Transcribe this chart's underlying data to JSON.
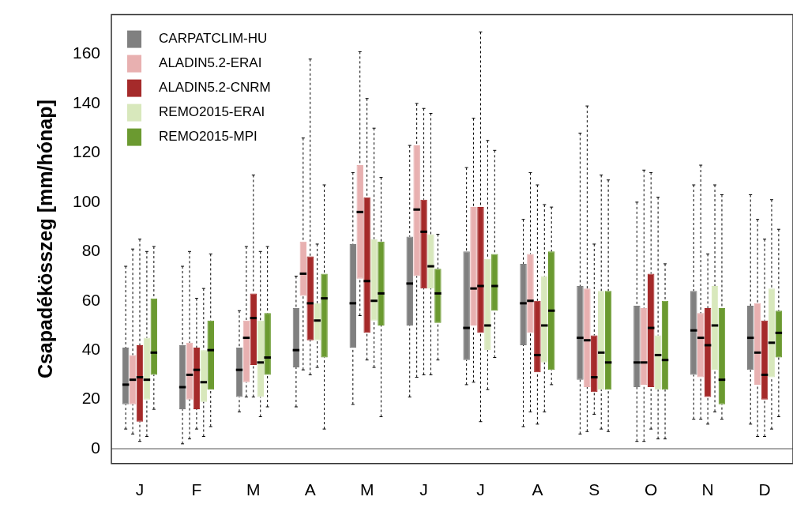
{
  "chart_data": {
    "type": "box",
    "ylabel": "Csapadékösszeg [mm/hónap]",
    "categories": [
      "J",
      "F",
      "M",
      "A",
      "M",
      "J",
      "J",
      "A",
      "S",
      "O",
      "N",
      "D"
    ],
    "ylim": [
      -6,
      176
    ],
    "yticks": [
      0,
      20,
      40,
      60,
      80,
      100,
      120,
      140,
      160
    ],
    "grid": false,
    "legend": "top left",
    "ref_lines": [
      {
        "axis": "y",
        "value": 0,
        "color": "#aaaaaa"
      }
    ],
    "series": [
      {
        "name": "CARPATCLIM-HU",
        "color": "#808080",
        "boxes": [
          {
            "low": 8,
            "q1": 18,
            "median": 26,
            "q3": 41,
            "high": 74
          },
          {
            "low": 2,
            "q1": 16,
            "median": 25,
            "q3": 42,
            "high": 74
          },
          {
            "low": 15,
            "q1": 21,
            "median": 32,
            "q3": 41,
            "high": 56
          },
          {
            "low": 17,
            "q1": 33,
            "median": 40,
            "q3": 57,
            "high": 70
          },
          {
            "low": 18,
            "q1": 41,
            "median": 59,
            "q3": 83,
            "high": 112
          },
          {
            "low": 21,
            "q1": 50,
            "median": 67,
            "q3": 86,
            "high": 123
          },
          {
            "low": 26,
            "q1": 36,
            "median": 49,
            "q3": 80,
            "high": 114
          },
          {
            "low": 9,
            "q1": 42,
            "median": 59,
            "q3": 75,
            "high": 93
          },
          {
            "low": 6,
            "q1": 28,
            "median": 45,
            "q3": 66,
            "high": 128
          },
          {
            "low": 3,
            "q1": 25,
            "median": 35,
            "q3": 58,
            "high": 100
          },
          {
            "low": 12,
            "q1": 30,
            "median": 48,
            "q3": 64,
            "high": 107
          },
          {
            "low": 10,
            "q1": 32,
            "median": 45,
            "q3": 58,
            "high": 103
          }
        ]
      },
      {
        "name": "ALADIN5.2-ERAI",
        "color": "#e8b0b0",
        "boxes": [
          {
            "low": 6,
            "q1": 18,
            "median": 28,
            "q3": 38,
            "high": 81
          },
          {
            "low": 4,
            "q1": 20,
            "median": 30,
            "q3": 43,
            "high": 80
          },
          {
            "low": 21,
            "q1": 27,
            "median": 45,
            "q3": 52,
            "high": 82
          },
          {
            "low": 32,
            "q1": 62,
            "median": 71,
            "q3": 84,
            "high": 126
          },
          {
            "low": 54,
            "q1": 69,
            "median": 96,
            "q3": 115,
            "high": 161
          },
          {
            "low": 29,
            "q1": 70,
            "median": 97,
            "q3": 123,
            "high": 140
          },
          {
            "low": 27,
            "q1": 50,
            "median": 65,
            "q3": 98,
            "high": 134
          },
          {
            "low": 15,
            "q1": 47,
            "median": 60,
            "q3": 79,
            "high": 112
          },
          {
            "low": 7,
            "q1": 25,
            "median": 44,
            "q3": 65,
            "high": 139
          },
          {
            "low": 3,
            "q1": 26,
            "median": 35,
            "q3": 57,
            "high": 113
          },
          {
            "low": 12,
            "q1": 29,
            "median": 45,
            "q3": 55,
            "high": 115
          },
          {
            "low": 5,
            "q1": 26,
            "median": 39,
            "q3": 59,
            "high": 93
          }
        ]
      },
      {
        "name": "ALADIN5.2-CNRM",
        "color": "#a52a2a",
        "boxes": [
          {
            "low": 3,
            "q1": 11,
            "median": 29,
            "q3": 42,
            "high": 85
          },
          {
            "low": 8,
            "q1": 16,
            "median": 32,
            "q3": 41,
            "high": 61
          },
          {
            "low": 21,
            "q1": 34,
            "median": 53,
            "q3": 63,
            "high": 111
          },
          {
            "low": 30,
            "q1": 44,
            "median": 59,
            "q3": 78,
            "high": 158
          },
          {
            "low": 36,
            "q1": 47,
            "median": 68,
            "q3": 102,
            "high": 142
          },
          {
            "low": 30,
            "q1": 65,
            "median": 88,
            "q3": 101,
            "high": 138
          },
          {
            "low": 11,
            "q1": 47,
            "median": 66,
            "q3": 98,
            "high": 169
          },
          {
            "low": 10,
            "q1": 31,
            "median": 38,
            "q3": 60,
            "high": 107
          },
          {
            "low": 14,
            "q1": 23,
            "median": 29,
            "q3": 46,
            "high": 83
          },
          {
            "low": 8,
            "q1": 25,
            "median": 49,
            "q3": 71,
            "high": 112
          },
          {
            "low": 10,
            "q1": 21,
            "median": 42,
            "q3": 57,
            "high": 79
          },
          {
            "low": 5,
            "q1": 20,
            "median": 30,
            "q3": 52,
            "high": 85
          }
        ]
      },
      {
        "name": "REMO2015-ERAI",
        "color": "#d8e8bc",
        "boxes": [
          {
            "low": 5,
            "q1": 20,
            "median": 28,
            "q3": 45,
            "high": 80
          },
          {
            "low": 5,
            "q1": 19,
            "median": 27,
            "q3": 40,
            "high": 65
          },
          {
            "low": 13,
            "q1": 21,
            "median": 35,
            "q3": 52,
            "high": 80
          },
          {
            "low": 33,
            "q1": 44,
            "median": 52,
            "q3": 59,
            "high": 83
          },
          {
            "low": 33,
            "q1": 52,
            "median": 60,
            "q3": 85,
            "high": 130
          },
          {
            "low": 30,
            "q1": 65,
            "median": 74,
            "q3": 87,
            "high": 136
          },
          {
            "low": 24,
            "q1": 40,
            "median": 50,
            "q3": 77,
            "high": 125
          },
          {
            "low": 15,
            "q1": 35,
            "median": 50,
            "q3": 70,
            "high": 99
          },
          {
            "low": 8,
            "q1": 24,
            "median": 39,
            "q3": 64,
            "high": 111
          },
          {
            "low": 4,
            "q1": 24,
            "median": 38,
            "q3": 46,
            "high": 102
          },
          {
            "low": 15,
            "q1": 32,
            "median": 50,
            "q3": 66,
            "high": 107
          },
          {
            "low": 8,
            "q1": 29,
            "median": 43,
            "q3": 65,
            "high": 101
          }
        ]
      },
      {
        "name": "REMO2015-MPI",
        "color": "#6b9a30",
        "boxes": [
          {
            "low": 16,
            "q1": 30,
            "median": 39,
            "q3": 61,
            "high": 82
          },
          {
            "low": 9,
            "q1": 24,
            "median": 40,
            "q3": 52,
            "high": 79
          },
          {
            "low": 17,
            "q1": 30,
            "median": 37,
            "q3": 55,
            "high": 82
          },
          {
            "low": 8,
            "q1": 37,
            "median": 61,
            "q3": 71,
            "high": 107
          },
          {
            "low": 13,
            "q1": 50,
            "median": 63,
            "q3": 84,
            "high": 110
          },
          {
            "low": 36,
            "q1": 51,
            "median": 63,
            "q3": 73,
            "high": 87
          },
          {
            "low": 37,
            "q1": 56,
            "median": 66,
            "q3": 79,
            "high": 121
          },
          {
            "low": 26,
            "q1": 32,
            "median": 56,
            "q3": 80,
            "high": 98
          },
          {
            "low": 7,
            "q1": 24,
            "median": 35,
            "q3": 64,
            "high": 109
          },
          {
            "low": 4,
            "q1": 24,
            "median": 36,
            "q3": 60,
            "high": 75
          },
          {
            "low": 12,
            "q1": 18,
            "median": 28,
            "q3": 57,
            "high": 103
          },
          {
            "low": 13,
            "q1": 37,
            "median": 47,
            "q3": 56,
            "high": 89
          }
        ]
      }
    ]
  }
}
